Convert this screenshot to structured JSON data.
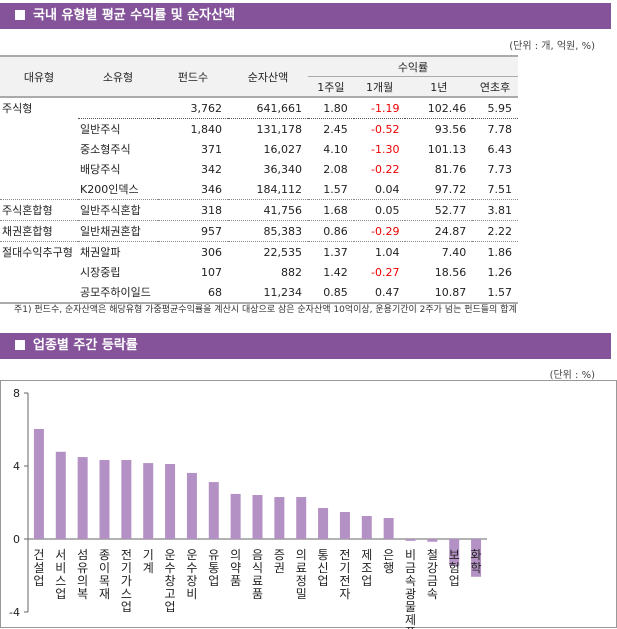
{
  "section1": {
    "title": "국내 유형별 평균 수익률 및 순자산액",
    "unit": "(단위 : 개, 억원, %)"
  },
  "table": {
    "headers": {
      "major": "대유형",
      "minor": "소유형",
      "funds": "펀드수",
      "assets": "순자산액",
      "returns": "수익률",
      "w1": "1주일",
      "m1": "1개월",
      "y1": "1년",
      "ytd": "연초후"
    },
    "rows": [
      [
        "주식형",
        "",
        "3,762",
        "641,661",
        "1.80",
        "-1.19",
        "102.46",
        "5.95"
      ],
      [
        "",
        "일반주식",
        "1,840",
        "131,178",
        "2.45",
        "-0.52",
        "93.56",
        "7.78"
      ],
      [
        "",
        "중소형주식",
        "371",
        "16,027",
        "4.10",
        "-1.30",
        "101.13",
        "6.43"
      ],
      [
        "",
        "배당주식",
        "342",
        "36,340",
        "2.08",
        "-0.22",
        "81.76",
        "7.73"
      ],
      [
        "",
        "K200인덱스",
        "346",
        "184,112",
        "1.57",
        "0.04",
        "97.72",
        "7.51"
      ],
      [
        "주식혼합형",
        "일반주식혼합",
        "318",
        "41,756",
        "1.68",
        "0.05",
        "52.77",
        "3.81"
      ],
      [
        "채권혼합형",
        "일반채권혼합",
        "957",
        "85,383",
        "0.86",
        "-0.29",
        "24.87",
        "2.22"
      ],
      [
        "절대수익추구형",
        "채권알파",
        "306",
        "22,535",
        "1.37",
        "1.04",
        "7.40",
        "1.86"
      ],
      [
        "",
        "시장중립",
        "107",
        "882",
        "1.42",
        "-0.27",
        "18.56",
        "1.26"
      ],
      [
        "",
        "공모주하이일드",
        "68",
        "11,234",
        "0.85",
        "0.47",
        "10.87",
        "1.57"
      ]
    ],
    "note": "주1) 펀드수, 순자산액은 해당유형 가중평균수익률을 계산시 대상으로 삼은 순자산액 10억이상, 운용기간이 2주가 넘는 펀드들의 합계"
  },
  "section2": {
    "title": "업종별 주간 등락률",
    "unit": "(단위 : %)"
  },
  "colors": {
    "header": "#84539a",
    "bar": "#b491c4",
    "negative": "#e00000"
  },
  "chart_data": {
    "type": "bar",
    "categories": [
      "건설업",
      "서비스업",
      "섬유의복",
      "종이목재",
      "전기가스업",
      "기계",
      "운수창고업",
      "운수장비",
      "유통업",
      "의약품",
      "음식료품",
      "증권",
      "의료정밀",
      "통신업",
      "전기전자",
      "제조업",
      "은행",
      "비금속광물제품",
      "철강금속",
      "보험업",
      "화학"
    ],
    "values": [
      6.03,
      4.78,
      4.49,
      4.33,
      4.33,
      4.16,
      4.11,
      3.62,
      3.12,
      2.47,
      2.41,
      2.3,
      2.3,
      1.7,
      1.48,
      1.26,
      1.15,
      -0.1,
      -0.15,
      -1.47,
      -2.07
    ],
    "ylim": [
      -4,
      8
    ],
    "yticks": [
      "-4",
      "0",
      "4",
      "8"
    ],
    "grid": false
  }
}
